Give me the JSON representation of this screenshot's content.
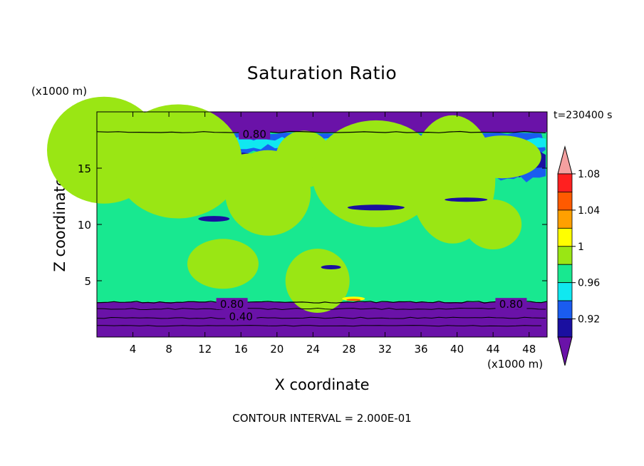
{
  "chart_data": {
    "type": "heatmap",
    "title": "Saturation Ratio",
    "xlabel": "X coordinate",
    "ylabel": "Z coordinate",
    "x_unit": "(x1000 m)",
    "y_unit": "(x1000 m)",
    "time_label": "t=230400 s",
    "footer": "CONTOUR INTERVAL = 2.000E-01",
    "xlim": [
      0,
      50
    ],
    "ylim": [
      0,
      20
    ],
    "x_ticks": [
      4,
      8,
      12,
      16,
      20,
      24,
      28,
      32,
      36,
      40,
      44,
      48
    ],
    "y_ticks": [
      5,
      10,
      15
    ],
    "colorbar": {
      "levels": [
        0.92,
        0.96,
        1,
        1.04,
        1.08
      ],
      "tick_labels": [
        "0.92",
        "0.96",
        "1",
        "1.04",
        "1.08"
      ],
      "colors": [
        "#6a12a8",
        "#1a0fa0",
        "#1a5cf0",
        "#10e8f0",
        "#18e890",
        "#9ae614",
        "#ffff00",
        "#ffa000",
        "#ff5a00",
        "#ff2020",
        "#f4a0a0"
      ]
    },
    "contour_labels": [
      "0.80",
      "0.80",
      "0.80",
      "0.40"
    ],
    "layers": [
      {
        "z_range": [
          0,
          3
        ],
        "value": "below 0.92"
      },
      {
        "z_range": [
          3,
          16.5
        ],
        "value": "0.96 to 1.04"
      },
      {
        "z_range": [
          16.5,
          18.3
        ],
        "value": "0.92 to 1.0"
      },
      {
        "z_range": [
          18.3,
          20
        ],
        "value": "below 0.92"
      }
    ]
  }
}
